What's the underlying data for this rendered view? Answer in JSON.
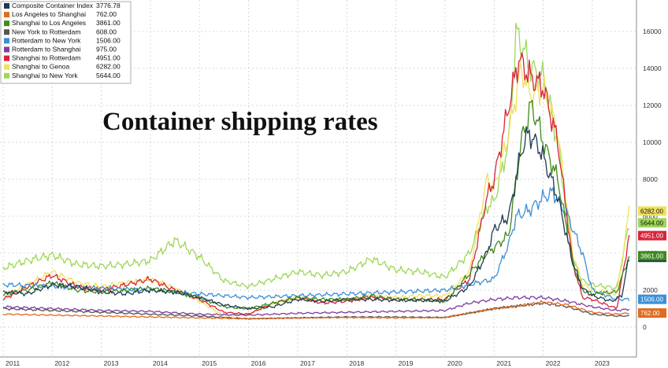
{
  "chart_data": {
    "type": "line",
    "title": "Container shipping rates",
    "xlabel": "",
    "ylabel": "",
    "xlim": [
      2011.0,
      2023.9
    ],
    "ylim": [
      -1000,
      17500
    ],
    "y_ticks": [
      0,
      2000,
      4000,
      6000,
      8000,
      10000,
      12000,
      14000,
      16000
    ],
    "y_tick_labels": [
      "0",
      "2000",
      "4000",
      "6000",
      "8000",
      "10000",
      "12000",
      "14000",
      "16000"
    ],
    "x_ticks": [
      2011.0,
      2012.0,
      2013.0,
      2014.0,
      2015.0,
      2016.0,
      2017.0,
      2018.0,
      2019.0,
      2020.0,
      2021.0,
      2022.0,
      2023.0
    ],
    "x_tick_labels": [
      "2011",
      "2012",
      "2013",
      "2014",
      "2015",
      "2016",
      "2017",
      "2018",
      "2019",
      "2020",
      "2021",
      "2022",
      "2023"
    ],
    "grid": true,
    "legend_position": "top-left",
    "series": [
      {
        "name": "Composite Container Index",
        "last": "3776.78",
        "color": "#1f3b4d",
        "points": [
          [
            2011.0,
            1900
          ],
          [
            2011.5,
            1800
          ],
          [
            2012.0,
            2300
          ],
          [
            2012.5,
            2200
          ],
          [
            2013.0,
            1900
          ],
          [
            2013.5,
            1800
          ],
          [
            2014.0,
            2000
          ],
          [
            2014.5,
            1900
          ],
          [
            2015.0,
            1600
          ],
          [
            2015.5,
            1200
          ],
          [
            2016.0,
            1000
          ],
          [
            2016.5,
            1100
          ],
          [
            2017.0,
            1500
          ],
          [
            2017.5,
            1400
          ],
          [
            2018.0,
            1500
          ],
          [
            2018.5,
            1500
          ],
          [
            2019.0,
            1450
          ],
          [
            2019.5,
            1450
          ],
          [
            2020.0,
            1400
          ],
          [
            2020.5,
            2200
          ],
          [
            2020.85,
            4000
          ],
          [
            2021.0,
            5300
          ],
          [
            2021.3,
            6000
          ],
          [
            2021.55,
            9500
          ],
          [
            2021.7,
            10500
          ],
          [
            2021.9,
            9800
          ],
          [
            2022.0,
            9200
          ],
          [
            2022.3,
            7000
          ],
          [
            2022.6,
            3500
          ],
          [
            2022.8,
            2100
          ],
          [
            2023.0,
            1700
          ],
          [
            2023.4,
            1400
          ],
          [
            2023.6,
            1700
          ],
          [
            2023.75,
            3776
          ]
        ]
      },
      {
        "name": "Los Angeles to Shanghai",
        "last": "762.00",
        "color": "#e06c1f",
        "points": [
          [
            2011.0,
            700
          ],
          [
            2012.0,
            650
          ],
          [
            2013.0,
            600
          ],
          [
            2014.0,
            550
          ],
          [
            2015.0,
            500
          ],
          [
            2016.0,
            450
          ],
          [
            2017.0,
            500
          ],
          [
            2018.0,
            520
          ],
          [
            2019.0,
            500
          ],
          [
            2020.0,
            520
          ],
          [
            2021.0,
            1000
          ],
          [
            2021.5,
            1150
          ],
          [
            2022.0,
            1350
          ],
          [
            2022.5,
            1200
          ],
          [
            2023.0,
            800
          ],
          [
            2023.5,
            700
          ],
          [
            2023.75,
            762
          ]
        ]
      },
      {
        "name": "Shanghai to Los Angeles",
        "last": "3861.00",
        "color": "#3f8a1c",
        "points": [
          [
            2011.0,
            1800
          ],
          [
            2011.5,
            2000
          ],
          [
            2012.0,
            2400
          ],
          [
            2012.5,
            2000
          ],
          [
            2013.0,
            1900
          ],
          [
            2013.5,
            2000
          ],
          [
            2014.0,
            2100
          ],
          [
            2014.5,
            1900
          ],
          [
            2015.0,
            1600
          ],
          [
            2015.5,
            1100
          ],
          [
            2016.0,
            1000
          ],
          [
            2016.5,
            1300
          ],
          [
            2017.0,
            1600
          ],
          [
            2017.5,
            1500
          ],
          [
            2018.0,
            1500
          ],
          [
            2018.5,
            1700
          ],
          [
            2019.0,
            1500
          ],
          [
            2019.5,
            1500
          ],
          [
            2020.0,
            1400
          ],
          [
            2020.5,
            2900
          ],
          [
            2020.85,
            4000
          ],
          [
            2021.0,
            4300
          ],
          [
            2021.3,
            5000
          ],
          [
            2021.55,
            10000
          ],
          [
            2021.75,
            12000
          ],
          [
            2021.9,
            11000
          ],
          [
            2022.0,
            10000
          ],
          [
            2022.3,
            8000
          ],
          [
            2022.6,
            3500
          ],
          [
            2022.8,
            2000
          ],
          [
            2023.0,
            1800
          ],
          [
            2023.5,
            1900
          ],
          [
            2023.75,
            3861
          ]
        ]
      },
      {
        "name": "New York to Rotterdam",
        "last": "608.00",
        "color": "#555555",
        "points": [
          [
            2011.0,
            1000
          ],
          [
            2012.0,
            900
          ],
          [
            2013.0,
            800
          ],
          [
            2014.0,
            700
          ],
          [
            2015.0,
            600
          ],
          [
            2016.0,
            450
          ],
          [
            2017.0,
            500
          ],
          [
            2018.0,
            550
          ],
          [
            2019.0,
            550
          ],
          [
            2020.0,
            520
          ],
          [
            2021.0,
            1000
          ],
          [
            2021.5,
            1150
          ],
          [
            2022.0,
            1300
          ],
          [
            2022.5,
            1100
          ],
          [
            2023.0,
            700
          ],
          [
            2023.5,
            600
          ],
          [
            2023.75,
            608
          ]
        ]
      },
      {
        "name": "Rotterdam to New York",
        "last": "1506.00",
        "color": "#3b8fd8",
        "points": [
          [
            2011.0,
            2300
          ],
          [
            2012.0,
            2200
          ],
          [
            2013.0,
            2100
          ],
          [
            2014.0,
            2000
          ],
          [
            2015.0,
            1800
          ],
          [
            2016.0,
            1600
          ],
          [
            2017.0,
            1700
          ],
          [
            2018.0,
            1800
          ],
          [
            2019.0,
            1900
          ],
          [
            2020.0,
            2000
          ],
          [
            2020.5,
            2300
          ],
          [
            2021.0,
            2600
          ],
          [
            2021.3,
            4500
          ],
          [
            2021.45,
            6000
          ],
          [
            2021.7,
            6300
          ],
          [
            2022.0,
            7000
          ],
          [
            2022.2,
            7300
          ],
          [
            2022.5,
            6000
          ],
          [
            2022.8,
            4000
          ],
          [
            2023.0,
            2000
          ],
          [
            2023.5,
            1500
          ],
          [
            2023.75,
            1506
          ]
        ]
      },
      {
        "name": "Rotterdam to Shanghai",
        "last": "975.00",
        "color": "#7b3fa0",
        "points": [
          [
            2011.0,
            1100
          ],
          [
            2012.0,
            1000
          ],
          [
            2013.0,
            900
          ],
          [
            2014.0,
            850
          ],
          [
            2015.0,
            700
          ],
          [
            2016.0,
            650
          ],
          [
            2017.0,
            750
          ],
          [
            2018.0,
            800
          ],
          [
            2019.0,
            850
          ],
          [
            2020.0,
            900
          ],
          [
            2020.5,
            1300
          ],
          [
            2021.0,
            1500
          ],
          [
            2021.5,
            1600
          ],
          [
            2022.0,
            1600
          ],
          [
            2022.5,
            1400
          ],
          [
            2023.0,
            1100
          ],
          [
            2023.5,
            900
          ],
          [
            2023.75,
            975
          ]
        ]
      },
      {
        "name": "Shanghai to Rotterdam",
        "last": "4951.00",
        "color": "#d8243a",
        "points": [
          [
            2011.0,
            1500
          ],
          [
            2011.5,
            2200
          ],
          [
            2012.0,
            2800
          ],
          [
            2012.5,
            2200
          ],
          [
            2013.0,
            2000
          ],
          [
            2013.5,
            2300
          ],
          [
            2014.0,
            2600
          ],
          [
            2014.5,
            2000
          ],
          [
            2015.0,
            1500
          ],
          [
            2015.5,
            800
          ],
          [
            2016.0,
            700
          ],
          [
            2016.5,
            1300
          ],
          [
            2017.0,
            1600
          ],
          [
            2017.5,
            1300
          ],
          [
            2018.0,
            1400
          ],
          [
            2018.5,
            1600
          ],
          [
            2019.0,
            1500
          ],
          [
            2019.5,
            1500
          ],
          [
            2020.0,
            1500
          ],
          [
            2020.5,
            2600
          ],
          [
            2020.85,
            7000
          ],
          [
            2021.0,
            8000
          ],
          [
            2021.3,
            12000
          ],
          [
            2021.5,
            14500
          ],
          [
            2021.75,
            13500
          ],
          [
            2022.0,
            13000
          ],
          [
            2022.3,
            10000
          ],
          [
            2022.6,
            3500
          ],
          [
            2022.8,
            1600
          ],
          [
            2023.0,
            1500
          ],
          [
            2023.5,
            1000
          ],
          [
            2023.75,
            4951
          ]
        ]
      },
      {
        "name": "Shanghai to Genoa",
        "last": "6282.00",
        "color": "#f0e060",
        "points": [
          [
            2011.0,
            1600
          ],
          [
            2011.5,
            2300
          ],
          [
            2012.0,
            3000
          ],
          [
            2012.5,
            2400
          ],
          [
            2013.0,
            2200
          ],
          [
            2013.5,
            2400
          ],
          [
            2014.0,
            2600
          ],
          [
            2014.5,
            2100
          ],
          [
            2015.0,
            1400
          ],
          [
            2015.5,
            600
          ],
          [
            2016.0,
            700
          ],
          [
            2016.5,
            1300
          ],
          [
            2017.0,
            1600
          ],
          [
            2017.5,
            1400
          ],
          [
            2018.0,
            1500
          ],
          [
            2018.5,
            1700
          ],
          [
            2019.0,
            1600
          ],
          [
            2019.5,
            1700
          ],
          [
            2020.0,
            1700
          ],
          [
            2020.5,
            3000
          ],
          [
            2020.85,
            8000
          ],
          [
            2021.0,
            7500
          ],
          [
            2021.3,
            10500
          ],
          [
            2021.55,
            14000
          ],
          [
            2021.75,
            12500
          ],
          [
            2022.0,
            13000
          ],
          [
            2022.3,
            10500
          ],
          [
            2022.6,
            4000
          ],
          [
            2022.8,
            2300
          ],
          [
            2023.0,
            2000
          ],
          [
            2023.5,
            1800
          ],
          [
            2023.75,
            6282
          ]
        ]
      },
      {
        "name": "Shanghai to New York",
        "last": "5644.00",
        "color": "#9fd65a",
        "points": [
          [
            2011.0,
            3200
          ],
          [
            2011.5,
            3600
          ],
          [
            2012.0,
            3900
          ],
          [
            2012.5,
            3400
          ],
          [
            2013.0,
            3300
          ],
          [
            2013.5,
            3400
          ],
          [
            2014.0,
            3600
          ],
          [
            2014.5,
            4700
          ],
          [
            2015.0,
            3800
          ],
          [
            2015.5,
            2500
          ],
          [
            2016.0,
            2200
          ],
          [
            2016.5,
            2600
          ],
          [
            2017.0,
            3000
          ],
          [
            2017.5,
            2800
          ],
          [
            2018.0,
            3000
          ],
          [
            2018.5,
            3700
          ],
          [
            2019.0,
            3100
          ],
          [
            2019.5,
            3000
          ],
          [
            2020.0,
            2700
          ],
          [
            2020.5,
            4000
          ],
          [
            2020.85,
            6500
          ],
          [
            2021.0,
            6800
          ],
          [
            2021.3,
            10000
          ],
          [
            2021.45,
            16000
          ],
          [
            2021.75,
            14000
          ],
          [
            2022.0,
            13500
          ],
          [
            2022.3,
            10000
          ],
          [
            2022.6,
            3600
          ],
          [
            2022.8,
            2500
          ],
          [
            2023.0,
            2300
          ],
          [
            2023.5,
            2100
          ],
          [
            2023.75,
            5644
          ]
        ]
      }
    ]
  }
}
